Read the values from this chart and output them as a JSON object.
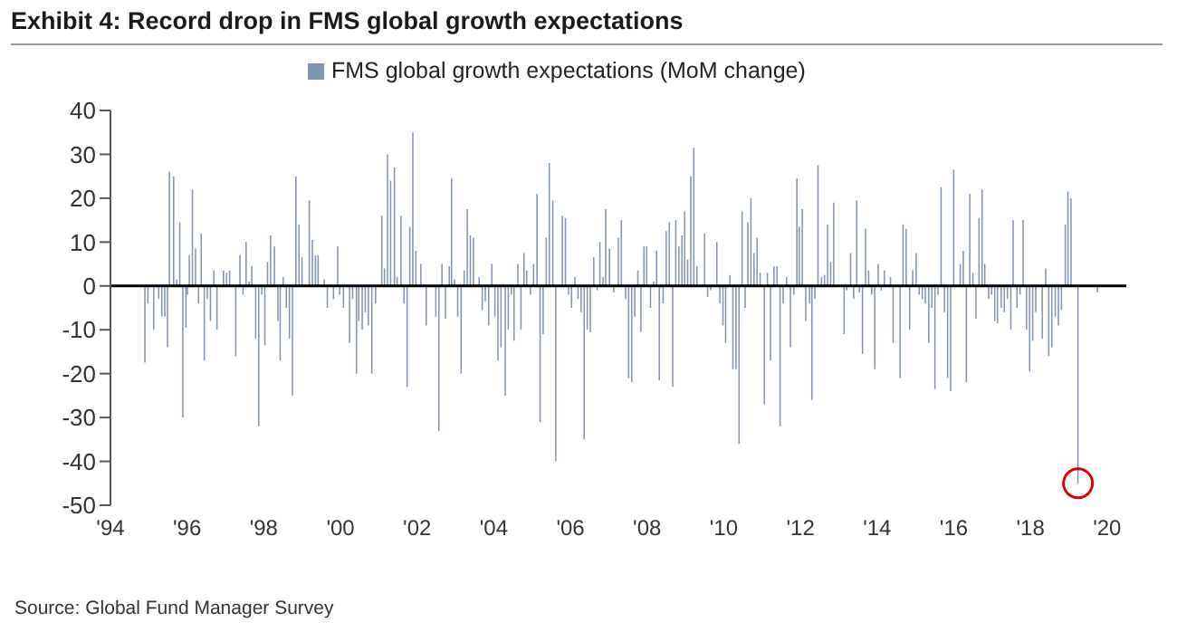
{
  "chart_data": {
    "type": "bar",
    "title": "Exhibit 4: Record drop in FMS global growth expectations",
    "annotations": [
      "Source: Global Fund Manager Survey"
    ],
    "x": [
      1994.9,
      1994.98,
      1995.13,
      1995.26,
      1995.34,
      1995.42,
      1995.49,
      1995.54,
      1995.65,
      1995.73,
      1995.81,
      1995.89,
      1995.97,
      1996.01,
      1996.06,
      1996.14,
      1996.22,
      1996.3,
      1996.37,
      1996.45,
      1996.53,
      1996.61,
      1996.7,
      1996.78,
      1996.95,
      1997.03,
      1997.11,
      1997.27,
      1997.38,
      1997.46,
      1997.54,
      1997.62,
      1997.69,
      1997.79,
      1997.87,
      1997.95,
      1998.03,
      1998.1,
      1998.18,
      1998.28,
      1998.37,
      1998.43,
      1998.51,
      1998.59,
      1998.67,
      1998.75,
      1998.84,
      1998.92,
      1999.0,
      1999.19,
      1999.27,
      1999.35,
      1999.42,
      1999.58,
      1999.66,
      1999.82,
      1999.93,
      1999.98,
      2000.08,
      2000.16,
      2000.24,
      2000.32,
      2000.42,
      2000.48,
      2000.57,
      2000.65,
      2000.73,
      2000.82,
      2000.92,
      2001.08,
      2001.15,
      2001.23,
      2001.31,
      2001.41,
      2001.48,
      2001.58,
      2001.66,
      2001.74,
      2001.81,
      2001.89,
      2001.97,
      2002.02,
      2002.1,
      2002.24,
      2002.49,
      2002.57,
      2002.65,
      2002.74,
      2002.84,
      2002.9,
      2002.98,
      2003.06,
      2003.15,
      2003.23,
      2003.31,
      2003.39,
      2003.47,
      2003.62,
      2003.7,
      2003.78,
      2003.87,
      2003.95,
      2004.03,
      2004.11,
      2004.19,
      2004.3,
      2004.38,
      2004.46,
      2004.53,
      2004.63,
      2004.71,
      2004.79,
      2004.86,
      2004.96,
      2005.04,
      2005.13,
      2005.21,
      2005.29,
      2005.37,
      2005.45,
      2005.54,
      2005.62,
      2005.7,
      2005.79,
      2005.87,
      2005.95,
      2006.03,
      2006.12,
      2006.2,
      2006.28,
      2006.36,
      2006.44,
      2006.52,
      2006.61,
      2006.7,
      2006.77,
      2006.85,
      2006.92,
      2007.02,
      2007.13,
      2007.25,
      2007.33,
      2007.44,
      2007.52,
      2007.6,
      2007.68,
      2007.76,
      2007.84,
      2007.92,
      2007.99,
      2008.09,
      2008.17,
      2008.25,
      2008.32,
      2008.42,
      2008.5,
      2008.58,
      2008.67,
      2008.75,
      2008.83,
      2008.91,
      2008.98,
      2009.06,
      2009.14,
      2009.22,
      2009.3,
      2009.5,
      2009.58,
      2009.66,
      2009.82,
      2009.9,
      2009.98,
      2010.05,
      2010.16,
      2010.24,
      2010.32,
      2010.4,
      2010.48,
      2010.56,
      2010.63,
      2010.71,
      2010.79,
      2010.87,
      2010.95,
      2011.06,
      2011.14,
      2011.22,
      2011.31,
      2011.39,
      2011.47,
      2011.55,
      2011.64,
      2011.74,
      2011.83,
      2011.91,
      2011.97,
      2012.05,
      2012.14,
      2012.24,
      2012.3,
      2012.38,
      2012.46,
      2012.55,
      2012.63,
      2012.71,
      2012.79,
      2012.87,
      2013.03,
      2013.14,
      2013.21,
      2013.31,
      2013.39,
      2013.47,
      2013.54,
      2013.62,
      2013.7,
      2013.78,
      2013.86,
      2013.94,
      2014.03,
      2014.11,
      2014.19,
      2014.35,
      2014.42,
      2014.6,
      2014.68,
      2014.76,
      2014.85,
      2014.93,
      2015.02,
      2015.1,
      2015.18,
      2015.26,
      2015.35,
      2015.43,
      2015.51,
      2015.59,
      2015.67,
      2015.76,
      2015.84,
      2015.92,
      2016.0,
      2016.17,
      2016.25,
      2016.33,
      2016.42,
      2016.5,
      2016.58,
      2016.66,
      2016.74,
      2016.81,
      2016.91,
      2016.99,
      2017.07,
      2017.14,
      2017.24,
      2017.32,
      2017.4,
      2017.49,
      2017.55,
      2017.65,
      2017.73,
      2017.81,
      2017.9,
      2017.98,
      2018.06,
      2018.14,
      2018.31,
      2018.4,
      2018.48,
      2018.56,
      2018.65,
      2018.73,
      2018.81,
      2018.91,
      2018.98,
      2019.06,
      2019.24,
      2019.75
    ],
    "series": [
      {
        "name": "FMS global growth expectations (MoM change)",
        "color": "#8093b0",
        "values": [
          -17.5,
          -4,
          -10,
          -3,
          -7,
          -7,
          -14,
          26,
          25,
          1.5,
          14.5,
          -30,
          -9.5,
          -2,
          7,
          22,
          8.5,
          -4,
          12,
          -17,
          -3,
          -8,
          3.5,
          -10,
          3.5,
          3,
          3.5,
          -16,
          7,
          -2,
          10,
          1,
          4.5,
          -12,
          -32,
          -2,
          -13.5,
          5.5,
          11.5,
          9,
          -8,
          -17,
          2,
          -5,
          -12,
          -25,
          25,
          14,
          6.5,
          19.5,
          10.5,
          7,
          7,
          1.5,
          -5,
          -3,
          9,
          -2,
          -5,
          null,
          -13,
          -3,
          -20,
          -8,
          -10,
          -6,
          -9,
          -20,
          -4,
          16,
          4,
          30,
          24,
          27,
          2,
          16,
          -4,
          -23,
          13.5,
          35,
          8,
          null,
          5,
          -9,
          -7,
          -33,
          5,
          -7.5,
          4.5,
          24.5,
          1.5,
          -7,
          -20,
          3.5,
          17.5,
          11.5,
          11,
          2,
          -5.5,
          -3.5,
          -9,
          5,
          -7,
          -17,
          -14,
          -25,
          -10,
          -2,
          -12.5,
          5,
          -10,
          7.5,
          3.5,
          -2,
          5,
          21,
          -31,
          -11,
          11,
          28,
          19.5,
          -40,
          null,
          16,
          15.5,
          -2,
          -5,
          2,
          -3,
          -6,
          -35,
          -10,
          -10.5,
          6.5,
          -1,
          10,
          2,
          17.5,
          8.5,
          -1.5,
          11,
          15,
          -3,
          -21,
          -22,
          -7,
          3.5,
          -10.5,
          9,
          9,
          -5,
          1,
          8,
          -21.5,
          -4,
          12.5,
          14.5,
          -23,
          15,
          9,
          11.5,
          17,
          6,
          25,
          31.5,
          4.5,
          12,
          -2.5,
          -1,
          10,
          -4,
          -9,
          -13,
          2.5,
          -19,
          -19,
          -36,
          17,
          -5,
          14.5,
          20,
          7.5,
          11,
          3,
          -27,
          3,
          -17,
          4.5,
          4.5,
          -32,
          -4,
          2,
          -14,
          -2,
          24.5,
          13.5,
          17.5,
          -8,
          -4,
          -26,
          -3,
          27.5,
          2,
          2.5,
          14,
          5.5,
          19,
          null,
          -11,
          -1,
          7.5,
          -3,
          19.5,
          -1.5,
          -15.5,
          13,
          3.5,
          -2,
          -19,
          5,
          -1,
          3.5,
          2,
          -13,
          -21,
          14,
          13,
          -10,
          3.5,
          7.5,
          -2,
          -3,
          -4,
          -13,
          -5,
          -23.5,
          -2,
          22.5,
          -6,
          -21,
          -24,
          26.5,
          5,
          8,
          -22,
          21,
          3,
          -7.5,
          15.5,
          22,
          5,
          -3,
          -2,
          -8,
          -8.5,
          -5,
          -6,
          -3,
          -10,
          15,
          -5,
          -2,
          15,
          -10,
          -19.5,
          -12.5,
          -6,
          -12,
          4,
          -16,
          -14,
          -7,
          -9,
          -5.5,
          14,
          21.5,
          20,
          -45,
          -1.5
        ]
      }
    ],
    "xlim": [
      1994,
      2020.5
    ],
    "xticks": [
      {
        "value": 1994,
        "label": "'94"
      },
      {
        "value": 1996,
        "label": "'96"
      },
      {
        "value": 1998,
        "label": "'98"
      },
      {
        "value": 2000,
        "label": "'00"
      },
      {
        "value": 2002,
        "label": "'02"
      },
      {
        "value": 2004,
        "label": "'04"
      },
      {
        "value": 2006,
        "label": "'06"
      },
      {
        "value": 2008,
        "label": "'08"
      },
      {
        "value": 2010,
        "label": "'10"
      },
      {
        "value": 2012,
        "label": "'12"
      },
      {
        "value": 2014,
        "label": "'14"
      },
      {
        "value": 2016,
        "label": "'16"
      },
      {
        "value": 2018,
        "label": "'18"
      },
      {
        "value": 2020,
        "label": "'20"
      }
    ],
    "ylim": [
      -50,
      40
    ],
    "yticks": [
      -50,
      -40,
      -30,
      -20,
      -10,
      0,
      10,
      20,
      30,
      40
    ],
    "ref_lines": [
      {
        "axis": "y",
        "value": 0,
        "color": "#000000"
      }
    ],
    "grid": false,
    "legend": "top"
  }
}
